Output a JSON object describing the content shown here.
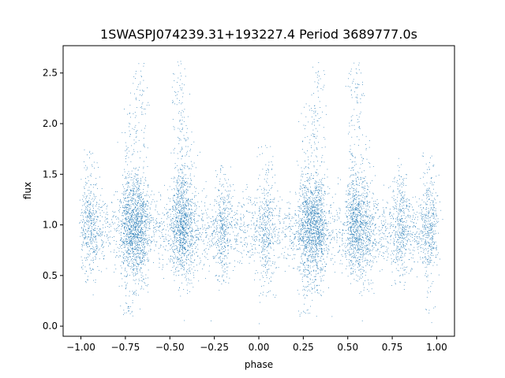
{
  "chart_data": {
    "type": "scatter",
    "title": "1SWASPJ074239.31+193227.4 Period 3689777.0s",
    "xlabel": "phase",
    "ylabel": "flux",
    "xlim": [
      -1.1,
      1.1
    ],
    "ylim": [
      -0.1,
      2.77
    ],
    "x_ticks": [
      -1.0,
      -0.75,
      -0.5,
      -0.25,
      0.0,
      0.25,
      0.5,
      0.75,
      1.0
    ],
    "x_tick_labels": [
      "−1.00",
      "−0.75",
      "−0.50",
      "−0.25",
      "0.00",
      "0.25",
      "0.50",
      "0.75",
      "1.00"
    ],
    "y_ticks": [
      0.0,
      0.5,
      1.0,
      1.5,
      2.0,
      2.5
    ],
    "y_tick_labels": [
      "0.0",
      "0.5",
      "1.0",
      "1.5",
      "2.0",
      "2.5"
    ],
    "grid": false,
    "legend": "none",
    "marker_color": "#1f77b4",
    "phase_clusters": [
      {
        "x": -0.95,
        "y_range": [
          0.6,
          1.8
        ]
      },
      {
        "x": -0.73,
        "y_range": [
          0.1,
          2.2
        ]
      },
      {
        "x": -0.67,
        "y_range": [
          0.3,
          2.62
        ]
      },
      {
        "x": -0.44,
        "y_range": [
          0.8,
          2.62
        ]
      },
      {
        "x": -0.4,
        "y_range": [
          0.3,
          1.9
        ]
      },
      {
        "x": -0.2,
        "y_range": [
          0.4,
          1.6
        ]
      },
      {
        "x": 0.04,
        "y_range": [
          0.2,
          1.8
        ]
      },
      {
        "x": 0.27,
        "y_range": [
          0.1,
          2.2
        ]
      },
      {
        "x": 0.33,
        "y_range": [
          0.3,
          2.62
        ]
      },
      {
        "x": 0.54,
        "y_range": [
          0.8,
          2.62
        ]
      },
      {
        "x": 0.6,
        "y_range": [
          0.3,
          1.9
        ]
      },
      {
        "x": 0.8,
        "y_range": [
          0.4,
          1.6
        ]
      },
      {
        "x": 0.96,
        "y_range": [
          0.1,
          1.8
        ]
      }
    ]
  }
}
